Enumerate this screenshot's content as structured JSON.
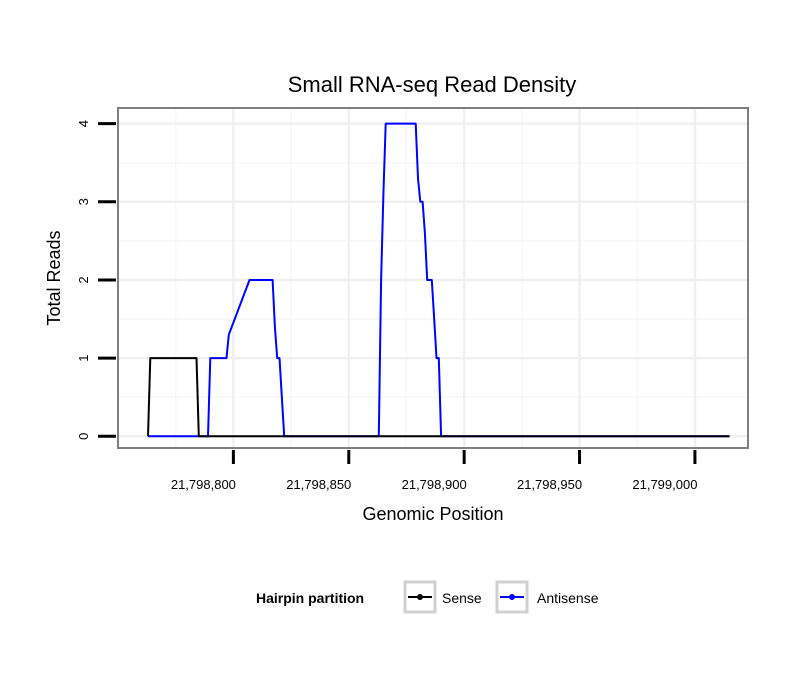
{
  "chart_data": {
    "type": "line",
    "title": "Small RNA-seq Read Density",
    "xlabel": "Genomic Position",
    "ylabel": "Total Reads",
    "xlim": [
      21798750,
      21799023
    ],
    "ylim": [
      -0.15,
      4.2
    ],
    "x_ticks": [
      21798800,
      21798850,
      21798900,
      21798950,
      21799000
    ],
    "x_tick_labels": [
      "21,798,800",
      "21,798,850",
      "21,798,900",
      "21,798,950",
      "21,799,000"
    ],
    "y_ticks": [
      0,
      1,
      2,
      3,
      4
    ],
    "y_tick_labels": [
      "0",
      "1",
      "2",
      "3",
      "4"
    ],
    "grid": true,
    "legend": {
      "title": "Hairpin partition",
      "position": "bottom"
    },
    "series": [
      {
        "name": "Sense",
        "color": "#000000",
        "x": [
          21798763,
          21798764,
          21798784,
          21798785,
          21798790,
          21799015
        ],
        "y": [
          0,
          1,
          1,
          0,
          0,
          0
        ]
      },
      {
        "name": "Antisense",
        "color": "#0000ff",
        "x": [
          21798763,
          21798789,
          21798790,
          21798797,
          21798798,
          21798807,
          21798817,
          21798818,
          21798819,
          21798820,
          21798822,
          21798863,
          21798864,
          21798865,
          21798866,
          21798879,
          21798880,
          21798881,
          21798882,
          21798883,
          21798884,
          21798885,
          21798886,
          21798887,
          21798888,
          21798889,
          21798890,
          21798891,
          21799015
        ],
        "y": [
          0,
          0,
          1,
          1,
          1.3,
          2,
          2,
          1.4,
          1,
          1,
          0,
          0,
          2,
          3.1,
          4,
          4,
          3.3,
          3,
          3,
          2.6,
          2,
          2,
          2,
          1.5,
          1,
          1,
          0,
          0,
          0
        ]
      }
    ]
  }
}
